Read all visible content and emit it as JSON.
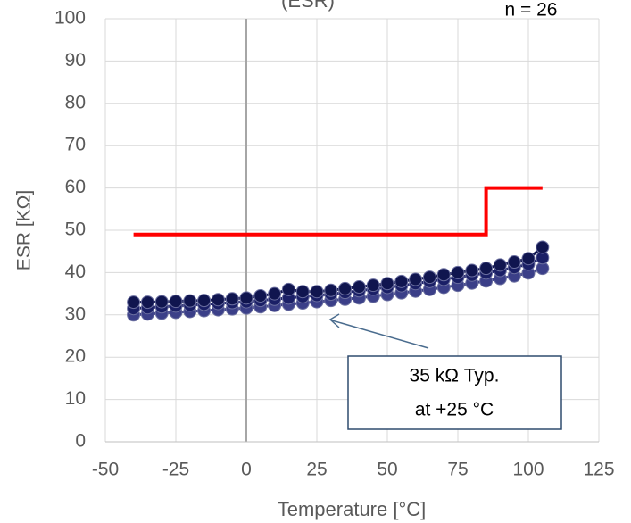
{
  "chart_data": {
    "type": "scatter",
    "title": "(ESR)",
    "subtitle": "n = 26",
    "xlabel": "Temperature [°C]",
    "ylabel": "ESR [KΩ]",
    "xlim": [
      -50,
      125
    ],
    "xticks": [
      -50,
      -25,
      0,
      25,
      50,
      75,
      100,
      125
    ],
    "ylim": [
      0,
      100
    ],
    "yticks": [
      0,
      10,
      20,
      30,
      40,
      50,
      60,
      70,
      80,
      90,
      100
    ],
    "grid": true,
    "series": [
      {
        "style": "markers",
        "color": "#3b3f88",
        "x": [
          -40,
          -35,
          -30,
          -25,
          -20,
          -15,
          -10,
          -5,
          0,
          5,
          10,
          15,
          20,
          25,
          30,
          35,
          40,
          45,
          50,
          55,
          60,
          65,
          70,
          75,
          80,
          85,
          90,
          95,
          100,
          105
        ],
        "values": [
          30,
          30.2,
          30.4,
          30.6,
          30.8,
          31,
          31.2,
          31.4,
          31.6,
          31.9,
          32.2,
          32.5,
          32.8,
          33.1,
          33.4,
          33.7,
          34,
          34.4,
          34.8,
          35.2,
          35.6,
          36,
          36.5,
          37,
          37.5,
          38,
          38.6,
          39.2,
          39.9,
          41
        ]
      },
      {
        "style": "markers",
        "color": "#1a1f66",
        "x": [
          -40,
          -35,
          -30,
          -25,
          -20,
          -15,
          -10,
          -5,
          0,
          5,
          10,
          15,
          20,
          25,
          30,
          35,
          40,
          45,
          50,
          55,
          60,
          65,
          70,
          75,
          80,
          85,
          90,
          95,
          100,
          105
        ],
        "values": [
          31.5,
          31.7,
          31.9,
          32.1,
          32.3,
          32.5,
          32.7,
          32.9,
          33.1,
          33.4,
          33.7,
          34,
          34.3,
          34.6,
          34.9,
          35.3,
          35.7,
          36.1,
          36.5,
          36.9,
          37.4,
          37.9,
          38.4,
          38.9,
          39.4,
          39.9,
          40.5,
          41.2,
          42,
          43.5
        ]
      },
      {
        "style": "markers",
        "color": "#10154f",
        "x": [
          -40,
          -35,
          -30,
          -25,
          -20,
          -15,
          -10,
          -5,
          0,
          5,
          10,
          15,
          20,
          25,
          30,
          35,
          40,
          45,
          50,
          55,
          60,
          65,
          70,
          75,
          80,
          85,
          90,
          95,
          100,
          105
        ],
        "values": [
          33,
          33,
          33.1,
          33.2,
          33.3,
          33.4,
          33.6,
          33.8,
          34,
          34.5,
          35,
          36,
          35.5,
          35.5,
          35.8,
          36.2,
          36.6,
          37,
          37.4,
          37.9,
          38.4,
          38.9,
          39.5,
          40,
          40.5,
          41,
          41.8,
          42.5,
          43.3,
          46
        ]
      },
      {
        "style": "line",
        "color": "#ff0000",
        "x": [
          -40,
          85,
          85,
          105
        ],
        "values": [
          49,
          49,
          60,
          60
        ]
      }
    ],
    "annotation": [
      "35 kΩ Typ.",
      "at +25 °C"
    ]
  }
}
